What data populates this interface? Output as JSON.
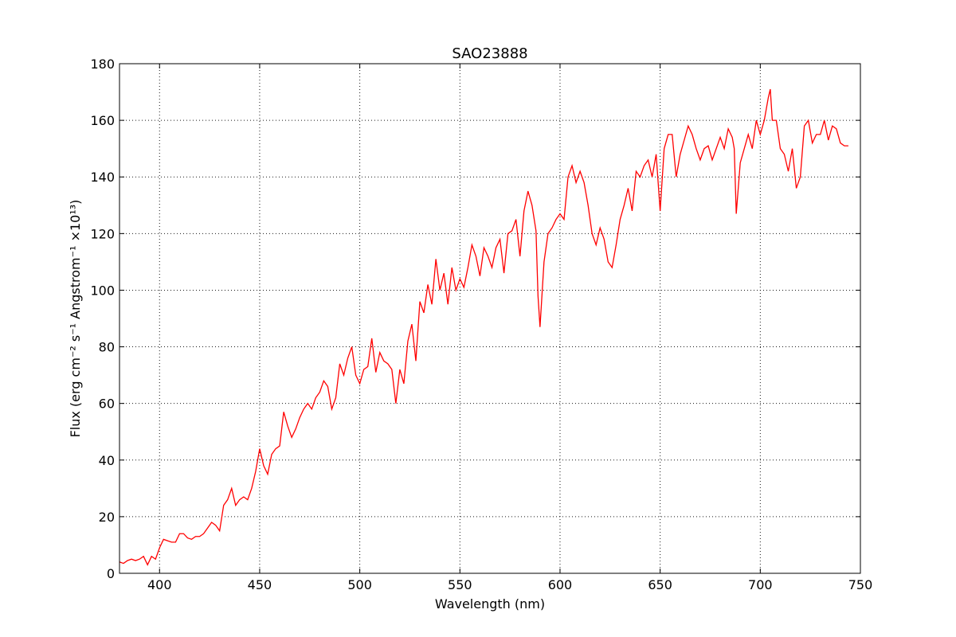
{
  "chart_data": {
    "type": "line",
    "title": "SAO23888",
    "xlabel": "Wavelength (nm)",
    "ylabel": "Flux  (erg cm⁻² s⁻¹ Angstrom⁻¹ ×10¹³)",
    "xlim": [
      380,
      750
    ],
    "ylim": [
      0,
      180
    ],
    "xticks": [
      400,
      450,
      500,
      550,
      600,
      650,
      700,
      750
    ],
    "yticks": [
      0,
      20,
      40,
      60,
      80,
      100,
      120,
      140,
      160,
      180
    ],
    "grid": true,
    "legend": "none",
    "colors": {
      "series": "#ff0000"
    },
    "series": [
      {
        "x": [
          380,
          382,
          384,
          386,
          388,
          390,
          392,
          394,
          396,
          398,
          400,
          402,
          404,
          406,
          408,
          410,
          412,
          414,
          416,
          418,
          420,
          422,
          424,
          426,
          428,
          430,
          432,
          434,
          436,
          438,
          440,
          442,
          444,
          446,
          448,
          450,
          452,
          454,
          456,
          458,
          460,
          462,
          464,
          466,
          468,
          470,
          472,
          474,
          476,
          478,
          480,
          482,
          484,
          486,
          488,
          490,
          492,
          494,
          496,
          498,
          500,
          502,
          504,
          506,
          508,
          510,
          512,
          514,
          516,
          518,
          520,
          522,
          524,
          526,
          528,
          530,
          532,
          534,
          536,
          538,
          540,
          542,
          544,
          546,
          548,
          550,
          552,
          554,
          556,
          558,
          560,
          562,
          564,
          566,
          568,
          570,
          572,
          574,
          576,
          578,
          580,
          582,
          584,
          586,
          588,
          589,
          590,
          592,
          594,
          596,
          598,
          600,
          602,
          604,
          606,
          608,
          610,
          612,
          614,
          616,
          618,
          620,
          622,
          624,
          626,
          628,
          630,
          632,
          634,
          636,
          638,
          640,
          642,
          644,
          646,
          648,
          650,
          652,
          654,
          656,
          658,
          660,
          662,
          664,
          666,
          668,
          670,
          672,
          674,
          676,
          678,
          680,
          682,
          684,
          686,
          687,
          688,
          690,
          692,
          694,
          696,
          698,
          700,
          702,
          704,
          705,
          706,
          708,
          710,
          712,
          714,
          716,
          718,
          720,
          722,
          724,
          726,
          728,
          730,
          732,
          734,
          736,
          738,
          740,
          742,
          744
        ],
        "y": [
          4,
          3.5,
          4.5,
          5,
          4.5,
          5,
          6,
          3,
          6,
          5,
          9,
          12,
          11.5,
          11,
          11,
          14,
          14,
          12.5,
          12,
          13,
          13,
          14,
          16,
          18,
          17,
          15,
          24,
          26,
          30,
          24,
          26,
          27,
          26,
          30,
          36,
          44,
          38,
          35,
          42,
          44,
          45,
          57,
          52,
          48,
          51,
          55,
          58,
          60,
          58,
          62,
          64,
          68,
          66,
          58,
          62,
          74,
          70,
          76,
          80,
          70,
          67,
          72,
          73,
          83,
          71,
          78,
          75,
          74,
          72,
          60,
          72,
          67,
          82,
          88,
          75,
          96,
          92,
          102,
          95,
          111,
          100,
          106,
          95,
          108,
          100,
          104,
          101,
          108,
          116,
          112,
          105,
          115,
          112,
          108,
          115,
          118,
          106,
          120,
          121,
          125,
          112,
          128,
          135,
          130,
          121,
          98,
          87,
          110,
          120,
          122,
          125,
          127,
          125,
          140,
          144,
          138,
          142,
          138,
          130,
          120,
          116,
          122,
          118,
          110,
          108,
          116,
          125,
          130,
          136,
          128,
          142,
          140,
          144,
          146,
          140,
          148,
          128,
          150,
          155,
          155,
          140,
          148,
          153,
          158,
          155,
          150,
          146,
          150,
          151,
          146,
          150,
          154,
          150,
          157,
          154,
          150,
          127,
          145,
          150,
          155,
          150,
          160,
          155,
          160,
          168,
          171,
          160,
          160,
          150,
          148,
          142,
          150,
          136,
          140,
          158,
          160,
          152,
          155,
          155,
          160,
          153,
          158,
          157,
          152,
          151,
          151
        ]
      }
    ]
  }
}
